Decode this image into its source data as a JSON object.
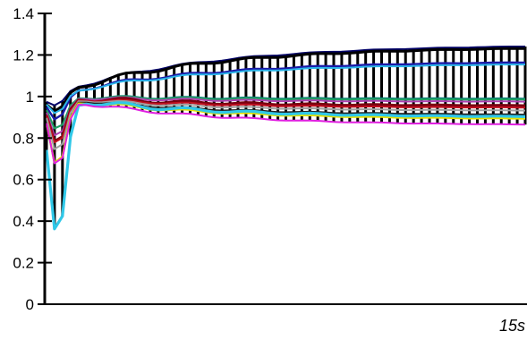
{
  "chart_data": {
    "type": "line",
    "title": "",
    "xlabel": "15s",
    "ylabel": "",
    "ylim": [
      0,
      1.4
    ],
    "y_ticks": [
      "0",
      "0.2",
      "0.4",
      "0.6",
      "0.8",
      "1",
      "1.2",
      "1.4"
    ],
    "grid": false,
    "legend": "none",
    "x": [
      0,
      0.25,
      0.5,
      0.75,
      1,
      1.25,
      1.5,
      1.75,
      2,
      2.25,
      2.5,
      2.75,
      3,
      3.25,
      3.5,
      3.75,
      4,
      4.25,
      4.5,
      4.75,
      5,
      5.25,
      5.5,
      5.75,
      6,
      6.25,
      6.5,
      6.75,
      7,
      7.25,
      7.5,
      7.75,
      8,
      8.25,
      8.5,
      8.75,
      9,
      9.25,
      9.5,
      9.75,
      10,
      10.25,
      10.5,
      10.75,
      11,
      11.25,
      11.5,
      11.75,
      12,
      12.25,
      12.5,
      12.75,
      13,
      13.25,
      13.5,
      13.75,
      14,
      14.25,
      14.5,
      14.75,
      15
    ],
    "series_params": [
      {
        "color": "#000066",
        "final": 1.25,
        "dip": 0.02,
        "widthScale": 1.0
      },
      {
        "color": "#000000",
        "final": 1.24,
        "dip": 0.03,
        "widthScale": 1.5
      },
      {
        "color": "#1a1aa8",
        "final": 1.17,
        "dip": 0.04,
        "widthScale": 1.2
      },
      {
        "color": "#2ab4e8",
        "final": 1.16,
        "dip": 0.03,
        "widthScale": 1.0
      },
      {
        "color": "#0a7a7a",
        "final": 0.99,
        "dip": 0.05,
        "widthScale": 1.0
      },
      {
        "color": "#20a060",
        "final": 0.985,
        "dip": 0.05,
        "widthScale": 1.0
      },
      {
        "color": "#b040b0",
        "final": 0.975,
        "dip": 0.06,
        "widthScale": 1.0
      },
      {
        "color": "#7a0010",
        "final": 0.955,
        "dip": 0.07,
        "widthScale": 1.5
      },
      {
        "color": "#c01020",
        "final": 0.945,
        "dip": 0.07,
        "widthScale": 1.0
      },
      {
        "color": "#a0a0a0",
        "final": 0.93,
        "dip": 0.08,
        "widthScale": 1.0
      },
      {
        "color": "#202020",
        "final": 0.91,
        "dip": 0.1,
        "widthScale": 1.0
      },
      {
        "color": "#e8e000",
        "final": 0.89,
        "dip": 0.1,
        "widthScale": 1.2
      },
      {
        "color": "#30c8e8",
        "final": 0.9,
        "dip": 0.2,
        "widthScale": 1.6
      },
      {
        "color": "#e020e0",
        "final": 0.86,
        "dip": 0.1,
        "widthScale": 1.0
      }
    ]
  }
}
